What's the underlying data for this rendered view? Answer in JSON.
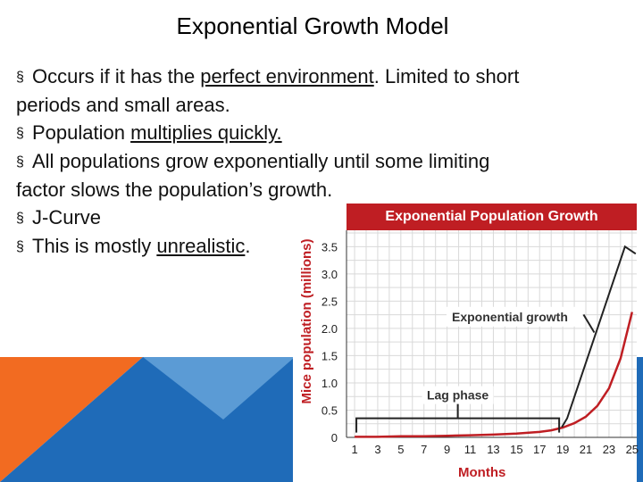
{
  "slide": {
    "title": "Exponential Growth Model",
    "bullets": [
      {
        "parts": [
          {
            "text": "Occurs if it has the "
          },
          {
            "text": "perfect environment",
            "u": true
          },
          {
            "text": ".  Limited to short"
          }
        ],
        "cont": "periods and small areas."
      },
      {
        "parts": [
          {
            "text": "Population "
          },
          {
            "text": "multiplies quickly.",
            "u": true
          }
        ]
      },
      {
        "parts": [
          {
            "text": "All populations grow exponentially until some limiting"
          }
        ],
        "cont": "factor slows the population’s growth."
      },
      {
        "parts": [
          {
            "text": "J-Curve"
          }
        ]
      },
      {
        "parts": [
          {
            "text": "This is mostly "
          },
          {
            "text": "unrealistic",
            "u": true
          },
          {
            "text": "."
          }
        ]
      }
    ],
    "bullet_symbol": "§"
  },
  "colors": {
    "accent_red": "#bf1e23",
    "deco_orange": "#f26b21",
    "deco_blue": "#1f6bb8",
    "deco_lightblue": "#5b9bd5",
    "grid": "#d9d9d9"
  },
  "chart_data": {
    "type": "line",
    "title": "Exponential Population Growth",
    "xlabel": "Months",
    "ylabel": "Mice population (millions)",
    "xticks": [
      1,
      3,
      5,
      7,
      9,
      11,
      13,
      15,
      17,
      19,
      21,
      23,
      25
    ],
    "yticks": [
      0,
      0.5,
      1.0,
      1.5,
      2.0,
      2.5,
      3.0,
      3.5
    ],
    "ytick_labels": [
      "0",
      "0.5",
      "1.0",
      "1.5",
      "2.0",
      "2.5",
      "3.0",
      "3.5"
    ],
    "xlim": [
      1,
      25
    ],
    "ylim": [
      0,
      3.8
    ],
    "grid": true,
    "series": [
      {
        "x": [
          1,
          3,
          5,
          7,
          9,
          11,
          13,
          15,
          17,
          18,
          19,
          20,
          21,
          22,
          23,
          24,
          25
        ],
        "values": [
          0.01,
          0.01,
          0.02,
          0.02,
          0.03,
          0.04,
          0.05,
          0.07,
          0.1,
          0.13,
          0.18,
          0.26,
          0.38,
          0.58,
          0.9,
          1.45,
          2.3
        ]
      }
    ],
    "annotations": [
      {
        "text": "Lag phase",
        "x_range": [
          1,
          19
        ]
      },
      {
        "text": "Exponential growth",
        "x_range": [
          20,
          25
        ]
      }
    ]
  }
}
